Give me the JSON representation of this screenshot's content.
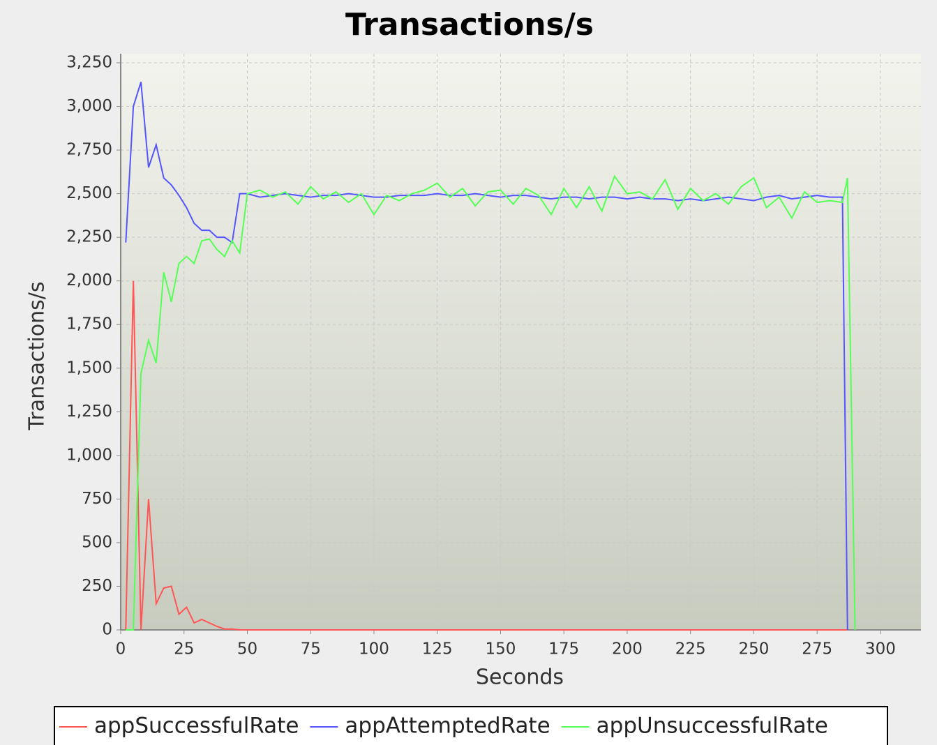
{
  "chart_data": {
    "type": "line",
    "title": "Transactions/s",
    "xlabel": "Seconds",
    "ylabel": "Transactions/s",
    "x": [
      2,
      5,
      8,
      11,
      14,
      17,
      20,
      23,
      26,
      29,
      32,
      35,
      38,
      41,
      44,
      47,
      50,
      55,
      60,
      65,
      70,
      75,
      80,
      85,
      90,
      95,
      100,
      105,
      110,
      115,
      120,
      125,
      130,
      135,
      140,
      145,
      150,
      155,
      160,
      165,
      170,
      175,
      180,
      185,
      190,
      195,
      200,
      205,
      210,
      215,
      220,
      225,
      230,
      235,
      240,
      245,
      250,
      255,
      260,
      265,
      270,
      275,
      280,
      285,
      287,
      290
    ],
    "series": [
      {
        "name": "appSuccessfulRate",
        "color": "#ff5555",
        "values": [
          0,
          2000,
          0,
          750,
          150,
          240,
          250,
          90,
          130,
          40,
          60,
          40,
          20,
          5,
          5,
          0,
          0,
          0,
          0,
          0,
          0,
          0,
          0,
          0,
          0,
          0,
          0,
          0,
          0,
          0,
          0,
          0,
          0,
          0,
          0,
          0,
          0,
          0,
          0,
          0,
          0,
          0,
          0,
          0,
          0,
          0,
          0,
          0,
          0,
          0,
          0,
          0,
          0,
          0,
          0,
          0,
          0,
          0,
          0,
          0,
          0,
          0,
          0,
          0,
          0,
          null
        ]
      },
      {
        "name": "appAttemptedRate",
        "color": "#5555ff",
        "values": [
          2220,
          3000,
          3140,
          2650,
          2780,
          2590,
          2550,
          2490,
          2420,
          2330,
          2290,
          2290,
          2250,
          2250,
          2220,
          2500,
          2500,
          2480,
          2490,
          2500,
          2490,
          2480,
          2490,
          2490,
          2500,
          2490,
          2480,
          2480,
          2490,
          2490,
          2490,
          2500,
          2490,
          2490,
          2500,
          2490,
          2480,
          2490,
          2490,
          2480,
          2470,
          2480,
          2480,
          2470,
          2480,
          2480,
          2470,
          2480,
          2470,
          2470,
          2460,
          2470,
          2460,
          2470,
          2480,
          2470,
          2460,
          2480,
          2490,
          2470,
          2480,
          2490,
          2480,
          2480,
          0,
          null
        ]
      },
      {
        "name": "appUnsuccessfulRate",
        "color": "#55ff55",
        "values": [
          0,
          0,
          1470,
          1660,
          1530,
          2050,
          1880,
          2100,
          2140,
          2100,
          2230,
          2240,
          2180,
          2140,
          2230,
          2160,
          2500,
          2520,
          2480,
          2510,
          2440,
          2540,
          2470,
          2510,
          2450,
          2500,
          2380,
          2490,
          2460,
          2500,
          2520,
          2560,
          2480,
          2530,
          2430,
          2510,
          2520,
          2440,
          2530,
          2490,
          2380,
          2530,
          2420,
          2540,
          2400,
          2600,
          2500,
          2510,
          2470,
          2580,
          2410,
          2530,
          2460,
          2500,
          2440,
          2540,
          2590,
          2420,
          2480,
          2360,
          2510,
          2450,
          2460,
          2450,
          2590,
          0
        ]
      }
    ],
    "xlim": [
      0,
      316
    ],
    "ylim": [
      0,
      3302
    ],
    "xticks": [
      0,
      25,
      50,
      75,
      100,
      125,
      150,
      175,
      200,
      225,
      250,
      275,
      300
    ],
    "yticks": [
      0,
      250,
      500,
      750,
      {
        "value": 1000,
        "label": "1,000"
      },
      {
        "value": 1250,
        "label": "1,250"
      },
      {
        "value": 1500,
        "label": "1,500"
      },
      {
        "value": 1750,
        "label": "1,750"
      },
      {
        "value": 2000,
        "label": "2,000"
      },
      {
        "value": 2250,
        "label": "2,250"
      },
      {
        "value": 2500,
        "label": "2,500"
      },
      {
        "value": 2750,
        "label": "2,750"
      },
      {
        "value": 3000,
        "label": "3,000"
      },
      {
        "value": 3250,
        "label": "3,250"
      }
    ],
    "grid": true,
    "legend": "bottom"
  }
}
